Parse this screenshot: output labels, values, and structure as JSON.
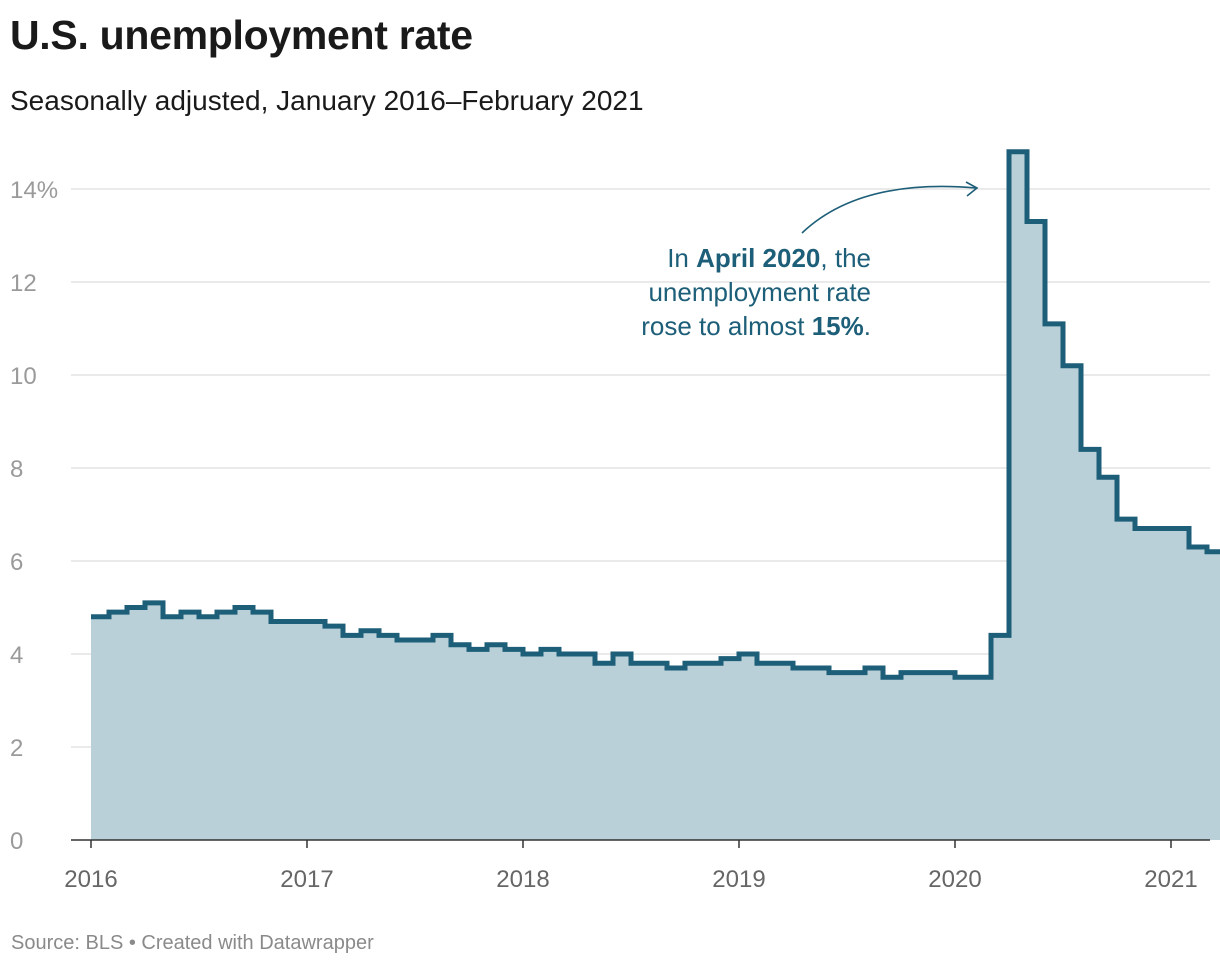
{
  "colors": {
    "line": "#1d5e78",
    "area": "#b9d0d8",
    "grid": "#dddddd"
  },
  "chart_data": {
    "type": "area",
    "title": "U.S. unemployment rate",
    "subtitle": "Seasonally adjusted, January 2016–February 2021",
    "ylim": [
      0,
      15.2
    ],
    "y_ticks": [
      {
        "value": 0,
        "label": "0"
      },
      {
        "value": 2,
        "label": "2"
      },
      {
        "value": 4,
        "label": "4"
      },
      {
        "value": 6,
        "label": "6"
      },
      {
        "value": 8,
        "label": "8"
      },
      {
        "value": 10,
        "label": "10"
      },
      {
        "value": 12,
        "label": "12"
      },
      {
        "value": 14,
        "label": "14%"
      }
    ],
    "x_ticks": [
      "2016",
      "2017",
      "2018",
      "2019",
      "2020",
      "2021"
    ],
    "start": "2016-01",
    "values": [
      4.8,
      4.9,
      5.0,
      5.1,
      4.8,
      4.9,
      4.8,
      4.9,
      5.0,
      4.9,
      4.7,
      4.7,
      4.7,
      4.6,
      4.4,
      4.5,
      4.4,
      4.3,
      4.3,
      4.4,
      4.2,
      4.1,
      4.2,
      4.1,
      4.0,
      4.1,
      4.0,
      4.0,
      3.8,
      4.0,
      3.8,
      3.8,
      3.7,
      3.8,
      3.8,
      3.9,
      4.0,
      3.8,
      3.8,
      3.7,
      3.7,
      3.6,
      3.6,
      3.7,
      3.5,
      3.6,
      3.6,
      3.6,
      3.5,
      3.5,
      4.4,
      14.8,
      13.3,
      11.1,
      10.2,
      8.4,
      7.8,
      6.9,
      6.7,
      6.7,
      6.7,
      6.3,
      6.2
    ],
    "annotation": {
      "line1_pre": "In ",
      "line1_bold": "April 2020",
      "line1_post": ", the",
      "line2": "unemployment rate",
      "line3_pre": "rose to almost ",
      "line3_bold": "15%",
      "line3_post": "."
    }
  },
  "footer": {
    "source": "Source: BLS • Created with Datawrapper"
  }
}
